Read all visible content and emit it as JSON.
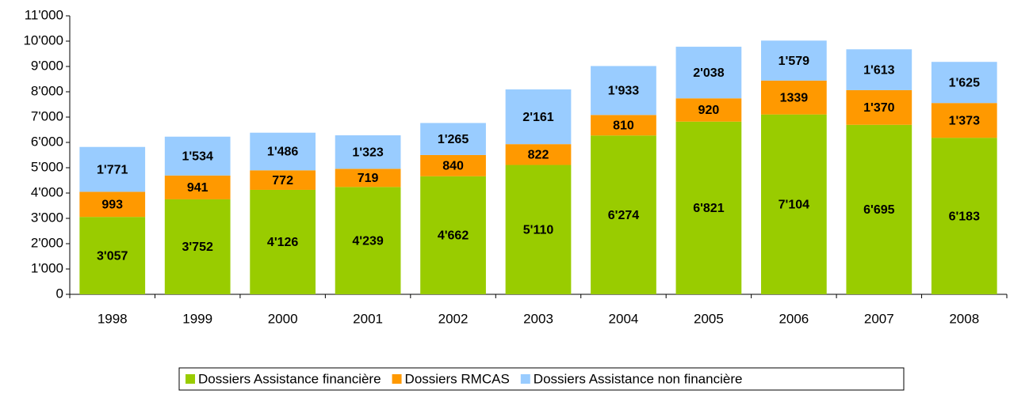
{
  "chart_data": {
    "type": "bar",
    "stacked": true,
    "categories": [
      "1998",
      "1999",
      "2000",
      "2001",
      "2002",
      "2003",
      "2004",
      "2005",
      "2006",
      "2007",
      "2008"
    ],
    "series": [
      {
        "name": "Dossiers Assistance financière",
        "color": "#99cc00",
        "values": [
          3057,
          3752,
          4126,
          4239,
          4662,
          5110,
          6274,
          6821,
          7104,
          6695,
          6183
        ],
        "value_labels": [
          "3'057",
          "3'752",
          "4'126",
          "4'239",
          "4'662",
          "5'110",
          "6'274",
          "6'821",
          "7'104",
          "6'695",
          "6'183"
        ]
      },
      {
        "name": "Dossiers RMCAS",
        "color": "#ff9900",
        "values": [
          993,
          941,
          772,
          719,
          840,
          822,
          810,
          920,
          1339,
          1370,
          1373
        ],
        "value_labels": [
          "993",
          "941",
          "772",
          "719",
          "840",
          "822",
          "810",
          "920",
          "1339",
          "1'370",
          "1'373"
        ]
      },
      {
        "name": "Dossiers Assistance non financière",
        "color": "#99ccff",
        "values": [
          1771,
          1534,
          1486,
          1323,
          1265,
          2161,
          1933,
          2038,
          1579,
          1613,
          1625
        ],
        "value_labels": [
          "1'771",
          "1'534",
          "1'486",
          "1'323",
          "1'265",
          "2'161",
          "1'933",
          "2'038",
          "1'579",
          "1'613",
          "1'625"
        ]
      }
    ],
    "ylim": [
      0,
      11000
    ],
    "yticks": [
      0,
      {
        "value": 1000,
        "label": "1'000"
      },
      {
        "value": 2000,
        "label": "2'000"
      },
      {
        "value": 3000,
        "label": "3'000"
      },
      {
        "value": 4000,
        "label": "4'000"
      },
      {
        "value": 5000,
        "label": "5'000"
      },
      {
        "value": 6000,
        "label": "6'000"
      },
      {
        "value": 7000,
        "label": "7'000"
      },
      {
        "value": 8000,
        "label": "8'000"
      },
      {
        "value": 9000,
        "label": "9'000"
      },
      {
        "value": 10000,
        "label": "10'000"
      },
      {
        "value": 11000,
        "label": "11'000"
      }
    ],
    "grid": false,
    "legend": "bottom"
  }
}
